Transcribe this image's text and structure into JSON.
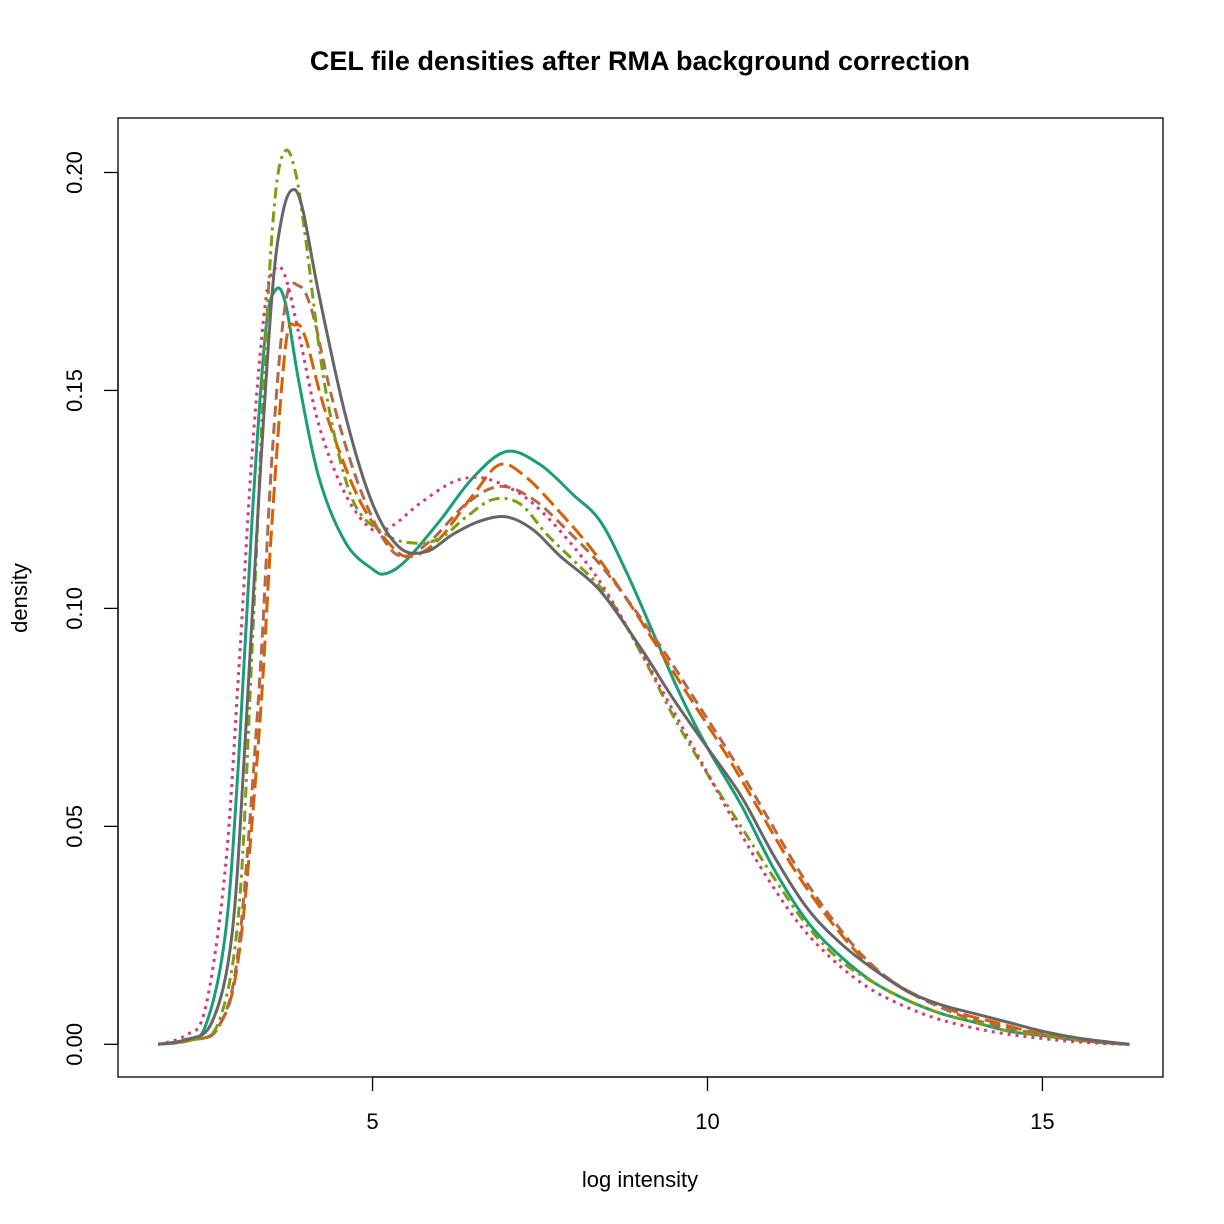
{
  "chart_data": {
    "type": "line",
    "title": "CEL file densities after RMA background correction",
    "xlabel": "log intensity",
    "ylabel": "density",
    "xlim": [
      1.2,
      16.8
    ],
    "ylim": [
      -0.0075,
      0.2125
    ],
    "x_ticks": [
      5,
      10,
      15
    ],
    "x_tick_labels": [
      "5",
      "10",
      "15"
    ],
    "y_ticks": [
      0.0,
      0.05,
      0.1,
      0.15,
      0.2
    ],
    "y_tick_labels": [
      "0.00",
      "0.05",
      "0.10",
      "0.15",
      "0.20"
    ],
    "legend": "none",
    "grid": false,
    "series": [
      {
        "color": "#1B9E77",
        "dash": "solid",
        "x": [
          1.8,
          2.2,
          2.5,
          2.8,
          3.0,
          3.2,
          3.4,
          3.55,
          3.7,
          3.9,
          4.2,
          4.6,
          5.0,
          5.2,
          5.5,
          6.0,
          6.5,
          7.0,
          7.5,
          8.0,
          8.4,
          8.8,
          9.2,
          9.6,
          10.0,
          10.5,
          11.0,
          11.5,
          12.0,
          12.5,
          13.0,
          13.5,
          14.0,
          14.5,
          15.0,
          15.5,
          16.0,
          16.3
        ],
        "y": [
          0.0,
          0.001,
          0.004,
          0.025,
          0.065,
          0.12,
          0.163,
          0.173,
          0.17,
          0.152,
          0.13,
          0.115,
          0.109,
          0.108,
          0.111,
          0.12,
          0.13,
          0.136,
          0.133,
          0.126,
          0.12,
          0.108,
          0.094,
          0.08,
          0.068,
          0.055,
          0.04,
          0.028,
          0.02,
          0.014,
          0.01,
          0.007,
          0.005,
          0.003,
          0.002,
          0.001,
          0.0003,
          0.0
        ]
      },
      {
        "color": "#D95F02",
        "dash": "dashed",
        "x": [
          1.8,
          2.3,
          2.7,
          3.0,
          3.3,
          3.5,
          3.7,
          3.85,
          4.0,
          4.3,
          4.8,
          5.3,
          5.6,
          6.0,
          6.5,
          6.9,
          7.3,
          7.8,
          8.3,
          8.8,
          9.3,
          9.8,
          10.3,
          10.8,
          11.3,
          11.8,
          12.3,
          12.8,
          13.3,
          13.8,
          14.3,
          14.8,
          15.3,
          15.8,
          16.3
        ],
        "y": [
          0.0,
          0.001,
          0.004,
          0.02,
          0.07,
          0.12,
          0.16,
          0.165,
          0.162,
          0.145,
          0.125,
          0.114,
          0.112,
          0.116,
          0.126,
          0.133,
          0.13,
          0.122,
          0.113,
          0.102,
          0.09,
          0.078,
          0.066,
          0.053,
          0.04,
          0.029,
          0.02,
          0.014,
          0.01,
          0.007,
          0.005,
          0.003,
          0.0015,
          0.0005,
          0.0
        ]
      },
      {
        "color": "#B1694A",
        "dash": "dashed-short",
        "x": [
          1.8,
          2.3,
          2.7,
          3.0,
          3.3,
          3.5,
          3.7,
          3.9,
          4.1,
          4.4,
          4.8,
          5.2,
          5.5,
          5.9,
          6.4,
          6.9,
          7.4,
          7.9,
          8.4,
          8.9,
          9.4,
          9.9,
          10.4,
          10.9,
          11.4,
          11.9,
          12.4,
          12.9,
          13.4,
          13.9,
          14.4,
          14.9,
          15.4,
          15.9,
          16.3
        ],
        "y": [
          0.0,
          0.001,
          0.004,
          0.022,
          0.08,
          0.135,
          0.17,
          0.174,
          0.168,
          0.148,
          0.128,
          0.115,
          0.112,
          0.116,
          0.124,
          0.128,
          0.125,
          0.118,
          0.11,
          0.1,
          0.089,
          0.077,
          0.065,
          0.052,
          0.039,
          0.028,
          0.019,
          0.013,
          0.009,
          0.006,
          0.004,
          0.0025,
          0.0012,
          0.0004,
          0.0
        ]
      },
      {
        "color": "#7A9F12",
        "dash": "dotdash",
        "x": [
          1.8,
          2.3,
          2.7,
          3.0,
          3.2,
          3.4,
          3.55,
          3.7,
          3.85,
          4.0,
          4.3,
          4.7,
          5.2,
          5.6,
          6.0,
          6.4,
          6.8,
          7.2,
          7.6,
          8.0,
          8.5,
          9.0,
          9.5,
          10.0,
          10.5,
          11.0,
          11.5,
          12.0,
          12.5,
          13.0,
          13.5,
          14.0,
          14.5,
          15.0,
          15.5,
          16.0,
          16.3
        ],
        "y": [
          0.0,
          0.001,
          0.005,
          0.03,
          0.09,
          0.16,
          0.195,
          0.205,
          0.2,
          0.185,
          0.15,
          0.125,
          0.117,
          0.115,
          0.116,
          0.121,
          0.125,
          0.124,
          0.117,
          0.111,
          0.103,
          0.09,
          0.075,
          0.062,
          0.05,
          0.038,
          0.027,
          0.019,
          0.014,
          0.01,
          0.007,
          0.005,
          0.003,
          0.002,
          0.001,
          0.0003,
          0.0
        ]
      },
      {
        "color": "#D6387C",
        "dash": "dotted",
        "x": [
          1.8,
          2.2,
          2.5,
          2.8,
          3.0,
          3.2,
          3.4,
          3.55,
          3.7,
          3.9,
          4.2,
          4.6,
          5.0,
          5.3,
          5.7,
          6.2,
          6.6,
          7.0,
          7.4,
          7.9,
          8.4,
          8.9,
          9.4,
          9.9,
          10.4,
          10.9,
          11.4,
          11.9,
          12.4,
          12.9,
          13.4,
          13.9,
          14.4,
          14.9,
          15.4,
          15.9,
          16.3
        ],
        "y": [
          0.0,
          0.002,
          0.008,
          0.04,
          0.085,
          0.135,
          0.17,
          0.178,
          0.176,
          0.163,
          0.142,
          0.126,
          0.118,
          0.119,
          0.124,
          0.129,
          0.13,
          0.128,
          0.124,
          0.116,
          0.106,
          0.093,
          0.079,
          0.065,
          0.051,
          0.038,
          0.027,
          0.019,
          0.013,
          0.009,
          0.006,
          0.004,
          0.0025,
          0.0015,
          0.0007,
          0.0002,
          0.0
        ]
      },
      {
        "color": "#666666",
        "dash": "solid",
        "x": [
          1.8,
          2.2,
          2.6,
          2.9,
          3.1,
          3.3,
          3.5,
          3.65,
          3.8,
          3.95,
          4.2,
          4.6,
          5.0,
          5.4,
          5.8,
          6.2,
          6.6,
          7.0,
          7.4,
          7.8,
          8.4,
          9.0,
          9.5,
          10.0,
          10.5,
          11.0,
          11.5,
          12.0,
          12.5,
          13.0,
          13.5,
          14.0,
          14.5,
          15.0,
          15.5,
          16.0,
          16.3
        ],
        "y": [
          0.0,
          0.001,
          0.005,
          0.025,
          0.07,
          0.125,
          0.172,
          0.19,
          0.196,
          0.192,
          0.172,
          0.144,
          0.124,
          0.114,
          0.113,
          0.117,
          0.12,
          0.121,
          0.118,
          0.112,
          0.104,
          0.091,
          0.079,
          0.068,
          0.057,
          0.043,
          0.031,
          0.023,
          0.017,
          0.012,
          0.009,
          0.007,
          0.005,
          0.003,
          0.0015,
          0.0005,
          0.0
        ]
      }
    ]
  }
}
